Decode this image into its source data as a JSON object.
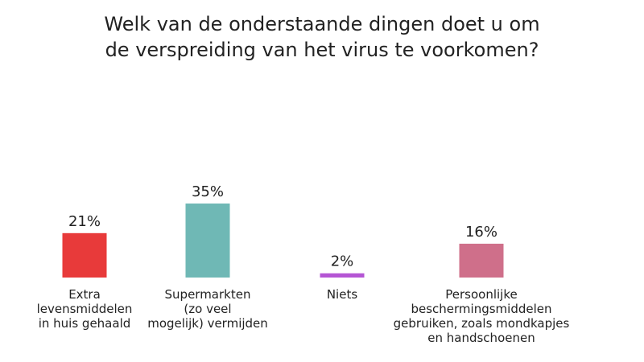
{
  "chart_data": {
    "type": "bar",
    "title_lines": [
      "Welk van de onderstaande dingen doet u om",
      "de verspreiding van het virus te voorkomen?"
    ],
    "categories": [
      [
        "Extra",
        "levensmiddelen",
        "in huis gehaald"
      ],
      [
        "Supermarkten",
        "(zo veel",
        "mogelijk) vermijden"
      ],
      [
        "Niets"
      ],
      [
        "Persoonlijke",
        "beschermingsmiddelen",
        "gebruiken, zoals mondkapjes",
        "en handschoenen"
      ]
    ],
    "values": [
      21,
      35,
      2,
      16
    ],
    "value_labels": [
      "21%",
      "35%",
      "2%",
      "16%"
    ],
    "colors": [
      "#e83a3a",
      "#6fb8b5",
      "#b455d4",
      "#cf6f8a"
    ],
    "ylim": [
      0,
      35
    ],
    "grid": false,
    "legend": "none"
  }
}
